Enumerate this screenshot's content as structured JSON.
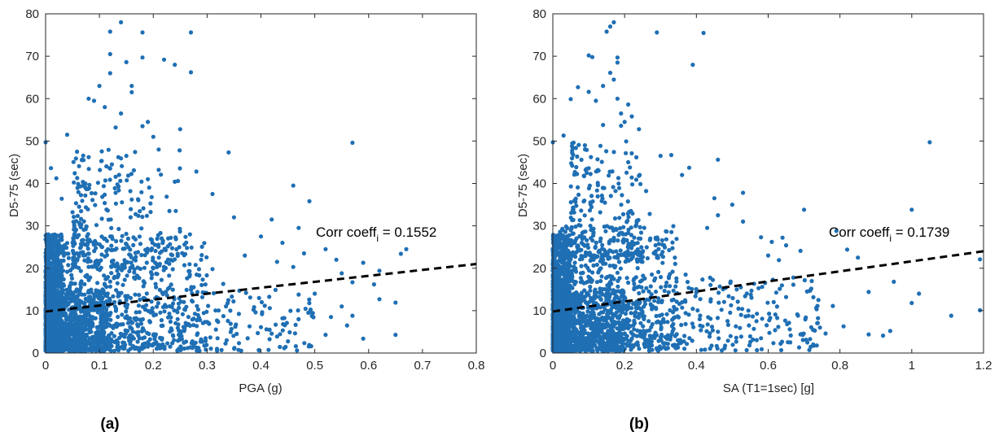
{
  "chart_data": [
    {
      "type": "scatter",
      "panel_label": "(a)",
      "xlabel": "PGA (g)",
      "ylabel": "D5-75 (sec)",
      "xlim": [
        0,
        0.8
      ],
      "ylim": [
        0,
        80
      ],
      "xticks": [
        0,
        0.1,
        0.2,
        0.3,
        0.4,
        0.5,
        0.6,
        0.7,
        0.8
      ],
      "xticklabels": [
        "0",
        "0.1",
        "0.2",
        "0.3",
        "0.4",
        "0.5",
        "0.6",
        "0.7",
        "0.8"
      ],
      "yticks": [
        0,
        10,
        20,
        30,
        40,
        50,
        60,
        70,
        80
      ],
      "yticklabels": [
        "0",
        "10",
        "20",
        "30",
        "40",
        "50",
        "60",
        "70",
        "80"
      ],
      "grid": false,
      "point_color": "#1f6fb4",
      "fit_line": {
        "x": [
          0,
          0.8
        ],
        "y": [
          9.8,
          21.0
        ],
        "style": "dashed",
        "color": "#000000"
      },
      "annotation": {
        "text_main": "Corr coeff",
        "text_sub": "i",
        "text_value": " = 0.1552"
      },
      "dense_clusters": [
        {
          "xmin": 0.0,
          "xmax": 0.03,
          "ymin": 0.5,
          "ymax": 28,
          "n": 900
        },
        {
          "xmin": 0.0,
          "xmax": 0.12,
          "ymin": 0.5,
          "ymax": 15,
          "n": 700
        },
        {
          "xmin": 0.02,
          "xmax": 0.3,
          "ymin": 1,
          "ymax": 28,
          "n": 700
        },
        {
          "xmin": 0.05,
          "xmax": 0.25,
          "ymin": 20,
          "ymax": 48,
          "n": 220
        },
        {
          "xmin": 0.1,
          "xmax": 0.5,
          "ymin": 0.5,
          "ymax": 15,
          "n": 260
        }
      ],
      "points": [
        [
          0.14,
          78
        ],
        [
          0.12,
          75.8
        ],
        [
          0.18,
          75.6
        ],
        [
          0.27,
          75.6
        ],
        [
          0.12,
          70.5
        ],
        [
          0.15,
          68.6
        ],
        [
          0.18,
          69.7
        ],
        [
          0.22,
          69.2
        ],
        [
          0.24,
          68
        ],
        [
          0.27,
          66.2
        ],
        [
          0.12,
          66
        ],
        [
          0.16,
          63
        ],
        [
          0.16,
          61.5
        ],
        [
          0.1,
          63
        ],
        [
          0.08,
          60
        ],
        [
          0.09,
          59.5
        ],
        [
          0.11,
          58
        ],
        [
          0.14,
          56.5
        ],
        [
          0.19,
          54.5
        ],
        [
          0.18,
          53.5
        ],
        [
          0.13,
          53.2
        ],
        [
          0.2,
          51
        ],
        [
          0.25,
          52.8
        ],
        [
          0.0,
          49.7
        ],
        [
          0.04,
          51.5
        ],
        [
          0.15,
          46.5
        ],
        [
          0.14,
          45.9
        ],
        [
          0.08,
          46.2
        ],
        [
          0.21,
          48
        ],
        [
          0.34,
          47.3
        ],
        [
          0.57,
          49.6
        ],
        [
          0.28,
          42.8
        ],
        [
          0.31,
          37.5
        ],
        [
          0.46,
          39.5
        ],
        [
          0.49,
          35.8
        ],
        [
          0.35,
          32
        ],
        [
          0.42,
          31.5
        ],
        [
          0.47,
          29.5
        ],
        [
          0.4,
          27.5
        ],
        [
          0.44,
          26
        ],
        [
          0.52,
          24.5
        ],
        [
          0.48,
          23.5
        ],
        [
          0.54,
          22
        ],
        [
          0.37,
          23
        ],
        [
          0.43,
          21.5
        ],
        [
          0.46,
          20.3
        ],
        [
          0.55,
          18.8
        ],
        [
          0.59,
          21.3
        ],
        [
          0.62,
          19.4
        ],
        [
          0.66,
          23.4
        ],
        [
          0.67,
          24.5
        ],
        [
          0.57,
          16.7
        ],
        [
          0.61,
          16.2
        ],
        [
          0.5,
          14
        ],
        [
          0.47,
          13.8
        ],
        [
          0.55,
          11
        ],
        [
          0.53,
          8.5
        ],
        [
          0.62,
          12.7
        ],
        [
          0.65,
          11.9
        ],
        [
          0.57,
          8.8
        ],
        [
          0.56,
          6.5
        ],
        [
          0.49,
          9.6
        ],
        [
          0.59,
          3.4
        ],
        [
          0.65,
          4.3
        ],
        [
          0.52,
          4.3
        ],
        [
          0.43,
          3.9
        ],
        [
          0.44,
          8.2
        ],
        [
          0.39,
          9.6
        ],
        [
          0.4,
          6.1
        ],
        [
          0.36,
          14.7
        ],
        [
          0.38,
          13.1
        ],
        [
          0.33,
          16.3
        ],
        [
          0.31,
          19.8
        ],
        [
          0.29,
          23.1
        ],
        [
          0.26,
          27.4
        ],
        [
          0.23,
          33.5
        ],
        [
          0.24,
          40.4
        ],
        [
          0.21,
          43.2
        ],
        [
          0.19,
          41
        ],
        [
          0.16,
          36.2
        ],
        [
          0.07,
          39.5
        ],
        [
          0.05,
          33.2
        ],
        [
          0.03,
          36.4
        ],
        [
          0.01,
          43.6
        ],
        [
          0.02,
          41.2
        ]
      ]
    },
    {
      "type": "scatter",
      "panel_label": "(b)",
      "xlabel": "SA (T1=1sec) [g]",
      "ylabel": "D5-75 (sec)",
      "xlim": [
        0,
        1.2
      ],
      "ylim": [
        0,
        80
      ],
      "xticks": [
        0,
        0.2,
        0.4,
        0.6,
        0.8,
        1.0,
        1.2
      ],
      "xticklabels": [
        "0",
        "0.2",
        "0.4",
        "0.6",
        "0.8",
        "1",
        "1.2"
      ],
      "yticks": [
        0,
        10,
        20,
        30,
        40,
        50,
        60,
        70,
        80
      ],
      "yticklabels": [
        "0",
        "10",
        "20",
        "30",
        "40",
        "50",
        "60",
        "70",
        "80"
      ],
      "grid": false,
      "point_color": "#1f6fb4",
      "fit_line": {
        "x": [
          0,
          1.2
        ],
        "y": [
          9.8,
          24.0
        ],
        "style": "dashed",
        "color": "#000000"
      },
      "annotation": {
        "text_main": "Corr coeff",
        "text_sub": "i",
        "text_value": " = 0.1739"
      },
      "dense_clusters": [
        {
          "xmin": 0.0,
          "xmax": 0.05,
          "ymin": 0.5,
          "ymax": 28,
          "n": 900
        },
        {
          "xmin": 0.0,
          "xmax": 0.2,
          "ymin": 0.5,
          "ymax": 15,
          "n": 700
        },
        {
          "xmin": 0.02,
          "xmax": 0.35,
          "ymin": 1,
          "ymax": 30,
          "n": 700
        },
        {
          "xmin": 0.05,
          "xmax": 0.25,
          "ymin": 22,
          "ymax": 50,
          "n": 220
        },
        {
          "xmin": 0.15,
          "xmax": 0.75,
          "ymin": 0.5,
          "ymax": 18,
          "n": 320
        }
      ],
      "points": [
        [
          0.17,
          78
        ],
        [
          0.16,
          77
        ],
        [
          0.15,
          75.8
        ],
        [
          0.29,
          75.6
        ],
        [
          0.42,
          75.5
        ],
        [
          0.1,
          70.2
        ],
        [
          0.11,
          69.8
        ],
        [
          0.18,
          69.7
        ],
        [
          0.18,
          68.5
        ],
        [
          0.39,
          68
        ],
        [
          0.16,
          66.1
        ],
        [
          0.17,
          64.5
        ],
        [
          0.07,
          62.7
        ],
        [
          0.14,
          63
        ],
        [
          0.1,
          61.6
        ],
        [
          0.05,
          59.9
        ],
        [
          0.12,
          59.5
        ],
        [
          0.18,
          60
        ],
        [
          0.21,
          58.6
        ],
        [
          0.19,
          56.5
        ],
        [
          0.2,
          54.5
        ],
        [
          0.19,
          53.6
        ],
        [
          0.14,
          53.8
        ],
        [
          0.22,
          55.8
        ],
        [
          0.24,
          52.8
        ],
        [
          0.0,
          49.7
        ],
        [
          0.03,
          51.3
        ],
        [
          0.3,
          46.5
        ],
        [
          0.33,
          46.7
        ],
        [
          0.46,
          45.6
        ],
        [
          0.38,
          43.7
        ],
        [
          0.36,
          42
        ],
        [
          0.45,
          36.5
        ],
        [
          0.5,
          35
        ],
        [
          0.53,
          37.8
        ],
        [
          0.46,
          32.5
        ],
        [
          0.53,
          31
        ],
        [
          0.43,
          29.5
        ],
        [
          0.58,
          27.3
        ],
        [
          0.61,
          26.2
        ],
        [
          0.64,
          27.2
        ],
        [
          0.65,
          25.4
        ],
        [
          0.6,
          23
        ],
        [
          0.63,
          21.9
        ],
        [
          0.69,
          24.1
        ],
        [
          0.7,
          33.8
        ],
        [
          0.79,
          28.8
        ],
        [
          0.82,
          24.4
        ],
        [
          0.85,
          22.5
        ],
        [
          1.0,
          33.8
        ],
        [
          1.05,
          49.7
        ],
        [
          1.19,
          22.1
        ],
        [
          0.95,
          16.8
        ],
        [
          0.88,
          14.4
        ],
        [
          1.02,
          14
        ],
        [
          1.0,
          11.8
        ],
        [
          1.11,
          8.8
        ],
        [
          1.19,
          10.1
        ],
        [
          0.78,
          11.1
        ],
        [
          0.74,
          12.5
        ],
        [
          0.72,
          15.2
        ],
        [
          0.67,
          17.8
        ],
        [
          0.65,
          13.2
        ],
        [
          0.62,
          9.1
        ],
        [
          0.66,
          5.6
        ],
        [
          0.69,
          4.4
        ],
        [
          0.73,
          5.3
        ],
        [
          0.76,
          4.6
        ],
        [
          0.81,
          6.3
        ],
        [
          0.88,
          4.4
        ],
        [
          0.94,
          5.2
        ],
        [
          0.92,
          4.1
        ],
        [
          0.56,
          5.7
        ],
        [
          0.58,
          3.5
        ],
        [
          0.51,
          6.3
        ],
        [
          0.47,
          10.2
        ],
        [
          0.44,
          12.7
        ],
        [
          0.4,
          14.3
        ],
        [
          0.37,
          18.5
        ],
        [
          0.34,
          22.5
        ],
        [
          0.31,
          25.4
        ],
        [
          0.27,
          32.8
        ],
        [
          0.26,
          38.2
        ],
        [
          0.24,
          41.8
        ],
        [
          0.21,
          45
        ]
      ]
    }
  ]
}
